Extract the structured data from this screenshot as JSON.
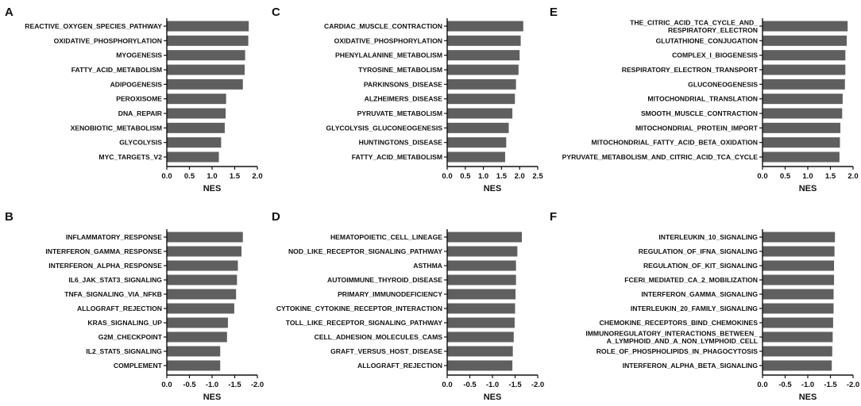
{
  "colors": {
    "bar": "#5f5f5f",
    "axis": "#111111",
    "text": "#111111"
  },
  "chart_data": [
    {
      "panel": "A",
      "type": "bar",
      "orientation": "horizontal",
      "xlabel": "NES",
      "ticks": [
        "0.0",
        "0.5",
        "1.0",
        "1.5",
        "2.0"
      ],
      "xlim": [
        0,
        2.0
      ],
      "categories": [
        "REACTIVE_OXYGEN_SPECIES_PATHWAY",
        "OXIDATIVE_PHOSPHORYLATION",
        "MYOGENESIS",
        "FATTY_ACID_METABOLISM",
        "ADIPOGENESIS",
        "PEROXISOME",
        "DNA_REPAIR",
        "XENOBIOTIC_METABOLISM",
        "GLYCOLYSIS",
        "MYC_TARGETS_V2"
      ],
      "values": [
        1.81,
        1.8,
        1.73,
        1.72,
        1.68,
        1.31,
        1.3,
        1.28,
        1.2,
        1.15
      ]
    },
    {
      "panel": "B",
      "type": "bar",
      "orientation": "horizontal",
      "xlabel": "NES",
      "ticks": [
        "0.0",
        "-0.5",
        "-1.0",
        "-1.5",
        "-2.0"
      ],
      "xlim": [
        0,
        -2.0
      ],
      "categories": [
        "INFLAMMATORY_RESPONSE",
        "INTERFERON_GAMMA_RESPONSE",
        "INTERFERON_ALPHA_RESPONSE",
        "IL6_JAK_STAT3_SIGNALING",
        "TNFA_SIGNALING_VIA_NFKB",
        "ALLOGRAFT_REJECTION",
        "KRAS_SIGNALING_UP",
        "G2M_CHECKPOINT",
        "IL2_STAT5_SIGNALING",
        "COMPLEMENT"
      ],
      "values": [
        -1.68,
        -1.65,
        -1.57,
        -1.55,
        -1.53,
        -1.49,
        -1.35,
        -1.33,
        -1.18,
        -1.18
      ]
    },
    {
      "panel": "C",
      "type": "bar",
      "orientation": "horizontal",
      "xlabel": "NES",
      "ticks": [
        "0.0",
        "0.5",
        "1.0",
        "1.5",
        "2.0",
        "2.5"
      ],
      "xlim": [
        0,
        2.5
      ],
      "categories": [
        "CARDIAC_MUSCLE_CONTRACTION",
        "OXIDATIVE_PHOSPHORYLATION",
        "PHENYLALANINE_METABOLISM",
        "TYROSINE_METABOLISM",
        "PARKINSONS_DISEASE",
        "ALZHEIMERS_DISEASE",
        "PYRUVATE_METABOLISM",
        "GLYCOLYSIS_GLUCONEOGENESIS",
        "HUNTINGTONS_DISEASE",
        "FATTY_ACID_METABOLISM"
      ],
      "values": [
        2.1,
        2.03,
        2.0,
        1.97,
        1.9,
        1.87,
        1.8,
        1.7,
        1.63,
        1.6
      ]
    },
    {
      "panel": "D",
      "type": "bar",
      "orientation": "horizontal",
      "xlabel": "NES",
      "ticks": [
        "0.0",
        "-0.5",
        "-1.0",
        "-1.5",
        "-2.0"
      ],
      "xlim": [
        0,
        -2.0
      ],
      "categories": [
        "HEMATOPOIETIC_CELL_LINEAGE",
        "NOD_LIKE_RECEPTOR_SIGNALING_PATHWAY",
        "ASTHMA",
        "AUTOIMMUNE_THYROID_DISEASE",
        "PRIMARY_IMMUNODEFICIENCY",
        "CYTOKINE_CYTOKINE_RECEPTOR_INTERACTION",
        "TOLL_LIKE_RECEPTOR_SIGNALING_PATHWAY",
        "CELL_ADHESION_MOLECULES_CAMS",
        "GRAFT_VERSUS_HOST_DISEASE",
        "ALLOGRAFT_REJECTION"
      ],
      "values": [
        -1.65,
        -1.55,
        -1.52,
        -1.52,
        -1.51,
        -1.5,
        -1.49,
        -1.47,
        -1.45,
        -1.44
      ]
    },
    {
      "panel": "E",
      "type": "bar",
      "orientation": "horizontal",
      "xlabel": "NES",
      "ticks": [
        "0.0",
        "0.5",
        "1.0",
        "1.5",
        "2.0"
      ],
      "xlim": [
        0,
        2.0
      ],
      "categories": [
        "THE_CITRIC_ACID_TCA_CYCLE_AND_\nRESPIRATORY_ELECTRON",
        "GLUTATHIONE_CONJUGATION",
        "COMPLEX_I_BIOGENESIS",
        "RESPIRATORY_ELECTRON_TRANSPORT",
        "GLUCONEOGENESIS",
        "MITOCHONDRIAL_TRANSLATION",
        "SMOOTH_MUSCLE_CONTRACTION",
        "MITOCHONDRIAL_PROTEIN_IMPORT",
        "MITOCHONDRIAL_FATTY_ACID_BETA_OXIDATION",
        "PYRUVATE_METABOLISM_AND_CITRIC_ACID_TCA_CYCLE"
      ],
      "values": [
        1.88,
        1.86,
        1.83,
        1.83,
        1.82,
        1.77,
        1.76,
        1.72,
        1.71,
        1.7
      ]
    },
    {
      "panel": "F",
      "type": "bar",
      "orientation": "horizontal",
      "xlabel": "NES",
      "ticks": [
        "0.0",
        "-0.5",
        "-1.0",
        "-1.5",
        "-2.0"
      ],
      "xlim": [
        0,
        -2.0
      ],
      "categories": [
        "INTERLEUKIN_10_SIGNALING",
        "REGULATION_OF_IFNA_SIGNALING",
        "REGULATION_OF_KIT_SIGNALING",
        "FCERI_MEDIATED_CA_2_MOBILIZATION",
        "INTERFERON_GAMMA_SIGNALING",
        "INTERLEUKIN_20_FAMILY_SIGNALING",
        "CHEMOKINE_RECEPTORS_BIND_CHEMOKINES",
        "IMMUNOREGULATORY_INTERACTIONS_BETWEEN_\nA_LYMPHOID_AND_A_NON_LYMPHOID_CELL",
        "ROLE_OF_PHOSPHOLIPIDS_IN_PHAGOCYTOSIS",
        "INTERFERON_ALPHA_BETA_SIGNALING"
      ],
      "values": [
        -1.6,
        -1.59,
        -1.58,
        -1.58,
        -1.57,
        -1.57,
        -1.56,
        -1.55,
        -1.54,
        -1.53
      ]
    }
  ]
}
